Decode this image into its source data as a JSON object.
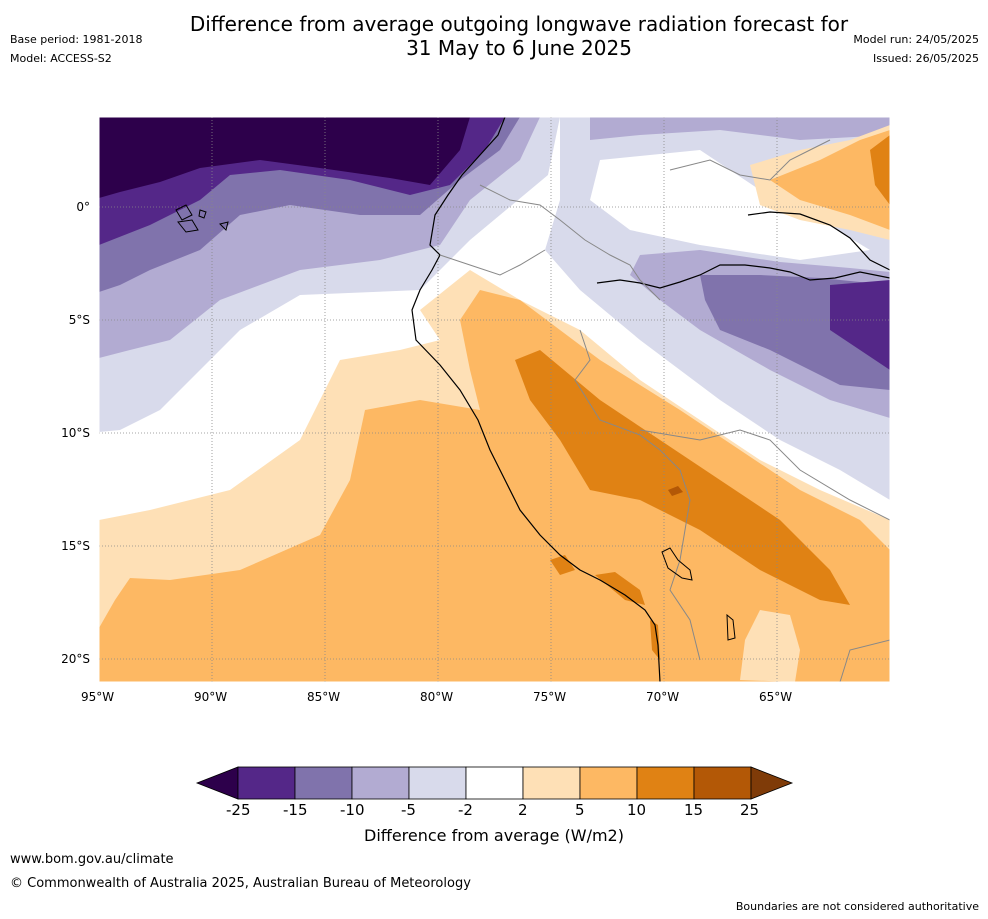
{
  "header": {
    "title_line1": "Difference from average outgoing longwave radiation forecast for",
    "title_line2": "31 May to 6 June 2025",
    "base_period": "Base period: 1981-2018",
    "model": "Model: ACCESS-S2",
    "model_run": "Model run: 24/05/2025",
    "issued": "Issued: 26/05/2025"
  },
  "map": {
    "lat_labels": [
      "0°",
      "5°S",
      "10°S",
      "15°S",
      "20°S"
    ],
    "lon_labels": [
      "95°W",
      "90°W",
      "85°W",
      "80°W",
      "75°W",
      "70°W",
      "65°W"
    ]
  },
  "colorbar": {
    "title": "Difference from average (W/m2)",
    "tick_labels": [
      "-25",
      "-15",
      "-10",
      "-5",
      "-2",
      "2",
      "5",
      "10",
      "15",
      "25"
    ],
    "colors": [
      "#2d004b",
      "#542788",
      "#8073ac",
      "#b2abd2",
      "#d8daeb",
      "#ffffff",
      "#fee0b6",
      "#fdb863",
      "#e08214",
      "#b35806",
      "#7f3b08"
    ]
  },
  "footer": {
    "website": "www.bom.gov.au/climate",
    "copyright": "© Commonwealth of Australia 2025, Australian Bureau of Meteorology",
    "disclaimer": "Boundaries are not considered authoritative"
  }
}
